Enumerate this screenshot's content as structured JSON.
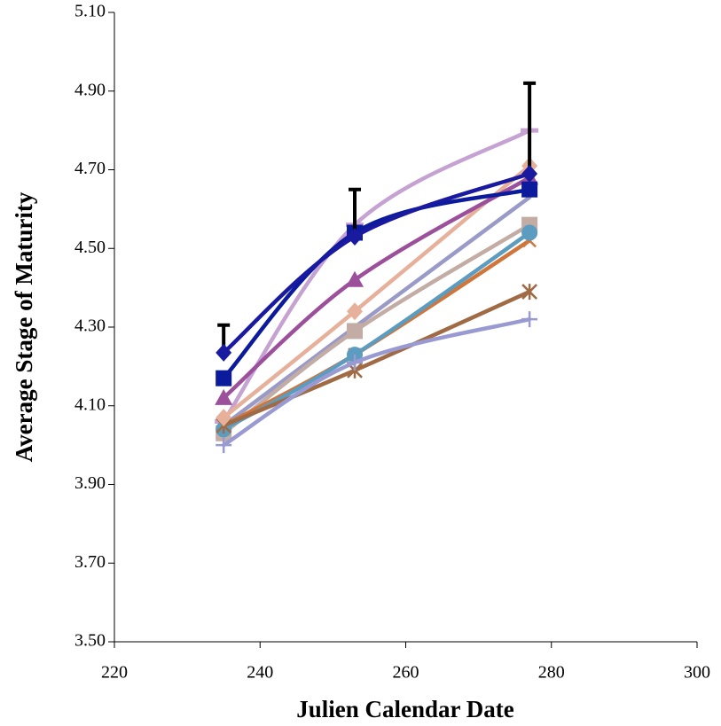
{
  "chart_data": {
    "type": "line",
    "xlabel": "Julien Calendar Date",
    "ylabel": "Average Stage of Maturity",
    "x": [
      235,
      253,
      277
    ],
    "xlim": [
      220,
      300
    ],
    "xticks": [
      220,
      240,
      260,
      280,
      300
    ],
    "ylim": [
      3.5,
      5.1
    ],
    "yticks": [
      {
        "value": 3.5,
        "label": "3.50"
      },
      {
        "value": 3.7,
        "label": "3.70"
      },
      {
        "value": 3.9,
        "label": "3.90"
      },
      {
        "value": 4.1,
        "label": "4.10"
      },
      {
        "value": 4.3,
        "label": "4.30"
      },
      {
        "value": 4.5,
        "label": "4.50"
      },
      {
        "value": 4.7,
        "label": "4.70"
      },
      {
        "value": 4.9,
        "label": "4.90"
      },
      {
        "value": 5.1,
        "label": "5.10"
      }
    ],
    "smooth": true,
    "series": [
      {
        "color": "#c6a2d2",
        "marker": "dash",
        "values": [
          4.06,
          4.56,
          4.8
        ]
      },
      {
        "color": "#9a9ac8",
        "marker": "none",
        "values": [
          4.05,
          4.3,
          4.63
        ]
      },
      {
        "color": "#c2aca4",
        "marker": "square",
        "values": [
          4.03,
          4.29,
          4.56
        ]
      },
      {
        "color": "#d0763a",
        "marker": "x",
        "values": [
          4.05,
          4.23,
          4.52
        ]
      },
      {
        "color": "#5c9cc0",
        "marker": "circle",
        "values": [
          4.04,
          4.23,
          4.54
        ]
      },
      {
        "color": "#a06a44",
        "marker": "star",
        "values": [
          4.05,
          4.19,
          4.39
        ]
      },
      {
        "color": "#9a9ad2",
        "marker": "plus",
        "values": [
          4.0,
          4.21,
          4.32
        ]
      },
      {
        "color": "#e6b09a",
        "marker": "diamond",
        "values": [
          4.07,
          4.34,
          4.71
        ]
      },
      {
        "color": "#9c509c",
        "marker": "triangle",
        "values": [
          4.12,
          4.42,
          4.68
        ]
      },
      {
        "color": "#0c1a9c",
        "marker": "square",
        "values": [
          4.17,
          4.54,
          4.65
        ]
      },
      {
        "color": "#1a1aa0",
        "marker": "diamond",
        "values": [
          4.235,
          4.53,
          4.69
        ],
        "errors": [
          0.07,
          0.12,
          0.23
        ],
        "error_color": "#000000"
      }
    ]
  }
}
